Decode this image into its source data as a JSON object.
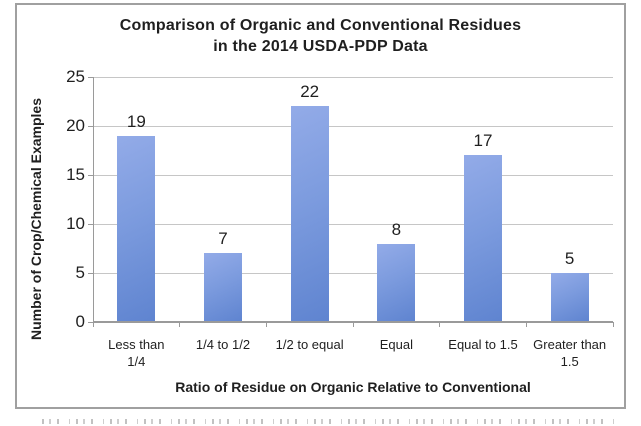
{
  "header": {
    "title_line1": "Comparison of Organic and Conventional Residues",
    "title_line2": "in the 2014 USDA-PDP Data"
  },
  "chart_data": {
    "type": "bar",
    "title": "Comparison of Organic and Conventional Residues in the 2014 USDA-PDP Data",
    "categories": [
      "Less than 1/4",
      "1/4 to 1/2",
      "1/2 to equal",
      "Equal",
      "Equal to 1.5",
      "Greater than 1.5"
    ],
    "categories_lines": [
      [
        "Less than",
        "1/4"
      ],
      [
        "1/4 to 1/2"
      ],
      [
        "1/2 to equal"
      ],
      [
        "Equal"
      ],
      [
        "Equal to 1.5"
      ],
      [
        "Greater than",
        "1.5"
      ]
    ],
    "values": [
      19,
      7,
      22,
      8,
      17,
      5
    ],
    "xlabel": "Ratio of Residue on Organic Relative to Conventional",
    "ylabel": "Number of Crop/Chemical Examples",
    "ylim": [
      0,
      25
    ],
    "yticks": [
      0,
      5,
      10,
      15,
      20,
      25
    ],
    "grid": true,
    "legend_position": "none",
    "data_labels_shown": true
  },
  "colors": {
    "bar_gradient_top": "#93ABE8",
    "bar_gradient_bottom": "#5F84D0",
    "gridline": "#C6C6C6",
    "axis_line": "#9A9A9A",
    "text": "#1F1F1F",
    "frame_border": "#A0A0A0",
    "background": "#FFFFFF"
  }
}
